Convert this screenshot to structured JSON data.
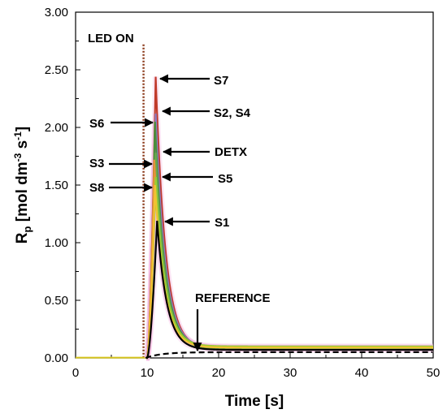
{
  "chart_data": {
    "type": "line",
    "title": "",
    "xlabel": "Time [s]",
    "ylabel": {
      "base": "R",
      "sub": "p",
      "bracket_open": " [mol dm",
      "sup1": "-3",
      "mid": " s",
      "sup2": "-1",
      "bracket_close": "]"
    },
    "xlim": [
      0,
      50
    ],
    "ylim": [
      0,
      3.0
    ],
    "x_ticks": [
      "0",
      "10",
      "20",
      "30",
      "40",
      "50"
    ],
    "y_ticks": [
      "0.00",
      "0.50",
      "1.00",
      "1.50",
      "2.00",
      "2.50",
      "3.00"
    ],
    "grid": false,
    "legend": "none",
    "led_on_time": 9.5,
    "series": [
      {
        "name": "S7",
        "peak": 2.44,
        "peak_t": 11.2,
        "tail": 0.08,
        "color": "#c0392b"
      },
      {
        "name": "S2, S4",
        "peak": 2.12,
        "peak_t": 11.2,
        "tail": 0.09,
        "color": "#8e7cc3"
      },
      {
        "name": "S6",
        "peak": 2.05,
        "peak_t": 11.1,
        "tail": 0.09,
        "color": "#4a8f3c"
      },
      {
        "name": "DETX",
        "peak": 1.78,
        "peak_t": 11.2,
        "tail": 0.08,
        "color": "#6aa84f"
      },
      {
        "name": "S3",
        "peak": 1.72,
        "peak_t": 11.0,
        "tail": 0.09,
        "color": "#e69138"
      },
      {
        "name": "S5",
        "peak": 1.57,
        "peak_t": 11.2,
        "tail": 0.1,
        "color": "#9acd32"
      },
      {
        "name": "S8",
        "peak": 1.5,
        "peak_t": 11.1,
        "tail": 0.09,
        "color": "#f1c232"
      },
      {
        "name": "S1",
        "peak": 1.19,
        "peak_t": 11.4,
        "tail": 0.07,
        "color": "#000000"
      },
      {
        "name": "REFERENCE",
        "peak": 0.05,
        "peak_t": 20,
        "tail": 0.05,
        "color": "#000000",
        "dashed": true
      }
    ],
    "annotations": [
      {
        "text": "LED ON"
      },
      {
        "text": "S7"
      },
      {
        "text": "S2, S4"
      },
      {
        "text": "S6"
      },
      {
        "text": "DETX"
      },
      {
        "text": "S3"
      },
      {
        "text": "S5"
      },
      {
        "text": "S8"
      },
      {
        "text": "S1"
      },
      {
        "text": "REFERENCE"
      }
    ]
  }
}
